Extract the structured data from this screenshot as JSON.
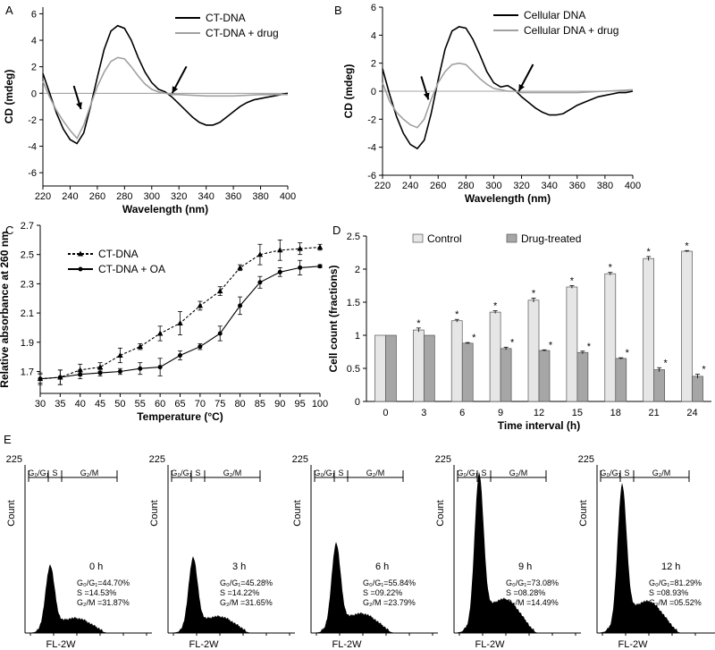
{
  "chart_data": [
    {
      "panel": "A",
      "type": "line",
      "xlabel": "Wavelength (nm)",
      "ylabel": "CD (mdeg)",
      "xlim": [
        220,
        400
      ],
      "ylim": [
        -7,
        6.5
      ],
      "xticks": [
        220,
        240,
        260,
        280,
        300,
        320,
        340,
        360,
        380,
        400
      ],
      "yticks": [
        -6,
        -4,
        -2,
        0,
        2,
        4,
        6
      ],
      "legend": "top-right",
      "series": [
        {
          "name": "CT-DNA",
          "color": "#000000",
          "x": [
            220,
            225,
            230,
            235,
            240,
            245,
            250,
            255,
            260,
            265,
            270,
            275,
            280,
            285,
            290,
            295,
            300,
            305,
            310,
            315,
            320,
            325,
            330,
            335,
            340,
            345,
            350,
            355,
            360,
            365,
            370,
            375,
            380,
            385,
            390,
            395,
            400
          ],
          "y": [
            1.5,
            0.0,
            -1.5,
            -2.7,
            -3.5,
            -3.8,
            -3.0,
            -1.0,
            1.2,
            3.3,
            4.7,
            5.1,
            4.9,
            4.0,
            2.7,
            1.6,
            0.8,
            0.3,
            0.1,
            -0.3,
            -0.8,
            -1.3,
            -1.8,
            -2.2,
            -2.4,
            -2.4,
            -2.2,
            -1.8,
            -1.4,
            -1.0,
            -0.7,
            -0.5,
            -0.4,
            -0.3,
            -0.2,
            -0.1,
            0.0
          ]
        },
        {
          "name": "CT-DNA + drug",
          "color": "#a0a0a0",
          "x": [
            220,
            225,
            230,
            235,
            240,
            245,
            250,
            255,
            260,
            265,
            270,
            275,
            280,
            285,
            290,
            295,
            300,
            305,
            310,
            315,
            320,
            340,
            360,
            380,
            400
          ],
          "y": [
            0.9,
            -0.3,
            -1.3,
            -2.1,
            -2.8,
            -3.4,
            -2.4,
            -0.9,
            0.5,
            1.6,
            2.4,
            2.7,
            2.6,
            2.0,
            1.3,
            0.7,
            0.3,
            0.1,
            0.0,
            -0.1,
            -0.1,
            -0.2,
            -0.2,
            -0.1,
            -0.1
          ]
        }
      ],
      "arrows": [
        {
          "x": 248,
          "y": -1.2
        },
        {
          "x": 315,
          "y": 0.0
        }
      ]
    },
    {
      "panel": "B",
      "type": "line",
      "xlabel": "Wavelength (nm)",
      "ylabel": "CD (mdeg)",
      "xlim": [
        220,
        400
      ],
      "ylim": [
        -6,
        6
      ],
      "xticks": [
        220,
        240,
        260,
        280,
        300,
        320,
        340,
        360,
        380,
        400
      ],
      "yticks": [
        -6,
        -4,
        -2,
        0,
        2,
        4,
        6
      ],
      "legend": "top-right",
      "series": [
        {
          "name": "Cellular DNA",
          "color": "#000000",
          "x": [
            220,
            225,
            230,
            235,
            240,
            245,
            250,
            255,
            260,
            265,
            270,
            275,
            280,
            285,
            290,
            295,
            300,
            305,
            310,
            315,
            320,
            325,
            330,
            335,
            340,
            345,
            350,
            355,
            360,
            365,
            370,
            375,
            380,
            385,
            390,
            395,
            400
          ],
          "y": [
            1.6,
            -0.2,
            -1.8,
            -3.0,
            -3.8,
            -4.1,
            -3.5,
            -1.6,
            0.8,
            3.0,
            4.3,
            4.6,
            4.5,
            3.7,
            2.6,
            1.4,
            0.6,
            0.3,
            0.4,
            0.1,
            -0.4,
            -0.8,
            -1.2,
            -1.5,
            -1.7,
            -1.7,
            -1.6,
            -1.3,
            -1.0,
            -0.8,
            -0.6,
            -0.4,
            -0.3,
            -0.2,
            -0.1,
            -0.1,
            0.0
          ]
        },
        {
          "name": "Cellular DNA + drug",
          "color": "#a0a0a0",
          "x": [
            220,
            225,
            230,
            235,
            240,
            245,
            250,
            255,
            260,
            265,
            270,
            275,
            280,
            285,
            290,
            295,
            300,
            305,
            310,
            315,
            320,
            340,
            360,
            380,
            400
          ],
          "y": [
            0.6,
            -0.7,
            -1.5,
            -2.0,
            -2.4,
            -2.6,
            -2.0,
            -0.6,
            0.6,
            1.4,
            1.9,
            2.0,
            1.9,
            1.4,
            0.9,
            0.5,
            0.2,
            0.1,
            0.0,
            0.0,
            -0.1,
            -0.1,
            -0.1,
            0.0,
            0.1
          ]
        }
      ],
      "arrows": [
        {
          "x": 253,
          "y": -0.6
        },
        {
          "x": 318,
          "y": 0.0
        }
      ]
    },
    {
      "panel": "C",
      "type": "line",
      "xlabel": "Temperature (°C)",
      "ylabel": "Relative absorbance at 260 nm",
      "xlim": [
        30,
        100
      ],
      "ylim": [
        1.55,
        2.7
      ],
      "xticks": [
        30,
        35,
        40,
        45,
        50,
        55,
        60,
        65,
        70,
        75,
        80,
        85,
        90,
        95,
        100
      ],
      "yticks": [
        1.7,
        1.9,
        2.1,
        2.3,
        2.5,
        2.7
      ],
      "legend": "top-left",
      "series": [
        {
          "name": "CT-DNA",
          "color": "#000000",
          "marker": "triangle",
          "dashed": true,
          "x": [
            30,
            35,
            40,
            45,
            50,
            55,
            60,
            65,
            70,
            75,
            80,
            85,
            90,
            95,
            100
          ],
          "y": [
            1.65,
            1.66,
            1.71,
            1.73,
            1.81,
            1.87,
            1.96,
            2.03,
            2.15,
            2.25,
            2.41,
            2.5,
            2.53,
            2.54,
            2.55
          ],
          "err": [
            0.04,
            0.05,
            0.04,
            0.03,
            0.05,
            0.02,
            0.05,
            0.08,
            0.03,
            0.03,
            0.02,
            0.07,
            0.07,
            0.04,
            0.02
          ]
        },
        {
          "name": "CT-DNA + OA",
          "color": "#000000",
          "marker": "circle",
          "dashed": false,
          "x": [
            30,
            35,
            40,
            45,
            50,
            55,
            60,
            65,
            70,
            75,
            80,
            85,
            90,
            95,
            100
          ],
          "y": [
            1.65,
            1.66,
            1.68,
            1.69,
            1.7,
            1.72,
            1.73,
            1.81,
            1.87,
            1.96,
            2.15,
            2.31,
            2.38,
            2.41,
            2.42
          ],
          "err": [
            0.03,
            0.05,
            0.03,
            0.02,
            0.02,
            0.04,
            0.06,
            0.03,
            0.02,
            0.05,
            0.06,
            0.04,
            0.03,
            0.05,
            0.01
          ]
        }
      ]
    },
    {
      "panel": "D",
      "type": "bar",
      "xlabel": "Time interval (h)",
      "ylabel": "Cell count (fractions)",
      "categories": [
        "0",
        "3",
        "6",
        "9",
        "12",
        "15",
        "18",
        "21",
        "24"
      ],
      "ylim": [
        0,
        2.5
      ],
      "yticks": [
        "0",
        "0.5",
        "1",
        "1.5",
        "2",
        "2.5"
      ],
      "legend": "top-center",
      "series": [
        {
          "name": "Control",
          "color": "#e6e6e6",
          "values": [
            1.0,
            1.08,
            1.22,
            1.35,
            1.53,
            1.73,
            1.93,
            2.16,
            2.27
          ],
          "err": [
            0,
            0.03,
            0.02,
            0.02,
            0.03,
            0.02,
            0.02,
            0.03,
            0.01
          ],
          "significant": [
            false,
            true,
            true,
            true,
            true,
            true,
            true,
            true,
            true
          ]
        },
        {
          "name": "Drug-treated",
          "color": "#a6a6a6",
          "values": [
            1.0,
            1.0,
            0.88,
            0.8,
            0.77,
            0.74,
            0.65,
            0.48,
            0.38
          ],
          "err": [
            0,
            0,
            0.01,
            0.02,
            0.01,
            0.02,
            0.01,
            0.03,
            0.03
          ],
          "significant": [
            false,
            false,
            true,
            true,
            true,
            true,
            true,
            true,
            true
          ]
        }
      ],
      "significance_mark": "*"
    }
  ],
  "panel_e": {
    "letter": "E",
    "ylabel": "Count",
    "ymax_label": "225",
    "xlabel": "FL-2W",
    "gate_labels": [
      "G₀/G₁",
      "S",
      "G₂/M"
    ],
    "histograms": [
      {
        "time": "0 h",
        "g0g1": "G₀/G₁=44.70%",
        "s": "S        =14.53%",
        "g2m": "G₂/M =31.87%",
        "peak": 0.42
      },
      {
        "time": "3 h",
        "g0g1": "G₀/G₁=45.28%",
        "s": "S        =14.22%",
        "g2m": "G₂/M =31.65%",
        "peak": 0.47
      },
      {
        "time": "6 h",
        "g0g1": "G₀/G₁=55.84%",
        "s": "S        =09.22%",
        "g2m": "G₂/M =23.79%",
        "peak": 0.56
      },
      {
        "time": "9 h",
        "g0g1": "G₀/G₁=73.08%",
        "s": "S        =08.28%",
        "g2m": "G₂/M =14.49%",
        "peak": 1.0
      },
      {
        "time": "12 h",
        "g0g1": "G₀/G₁=81.29%",
        "s": "S        =08.93%",
        "g2m": "G₂/M =05.52%",
        "peak": 0.93
      }
    ]
  }
}
